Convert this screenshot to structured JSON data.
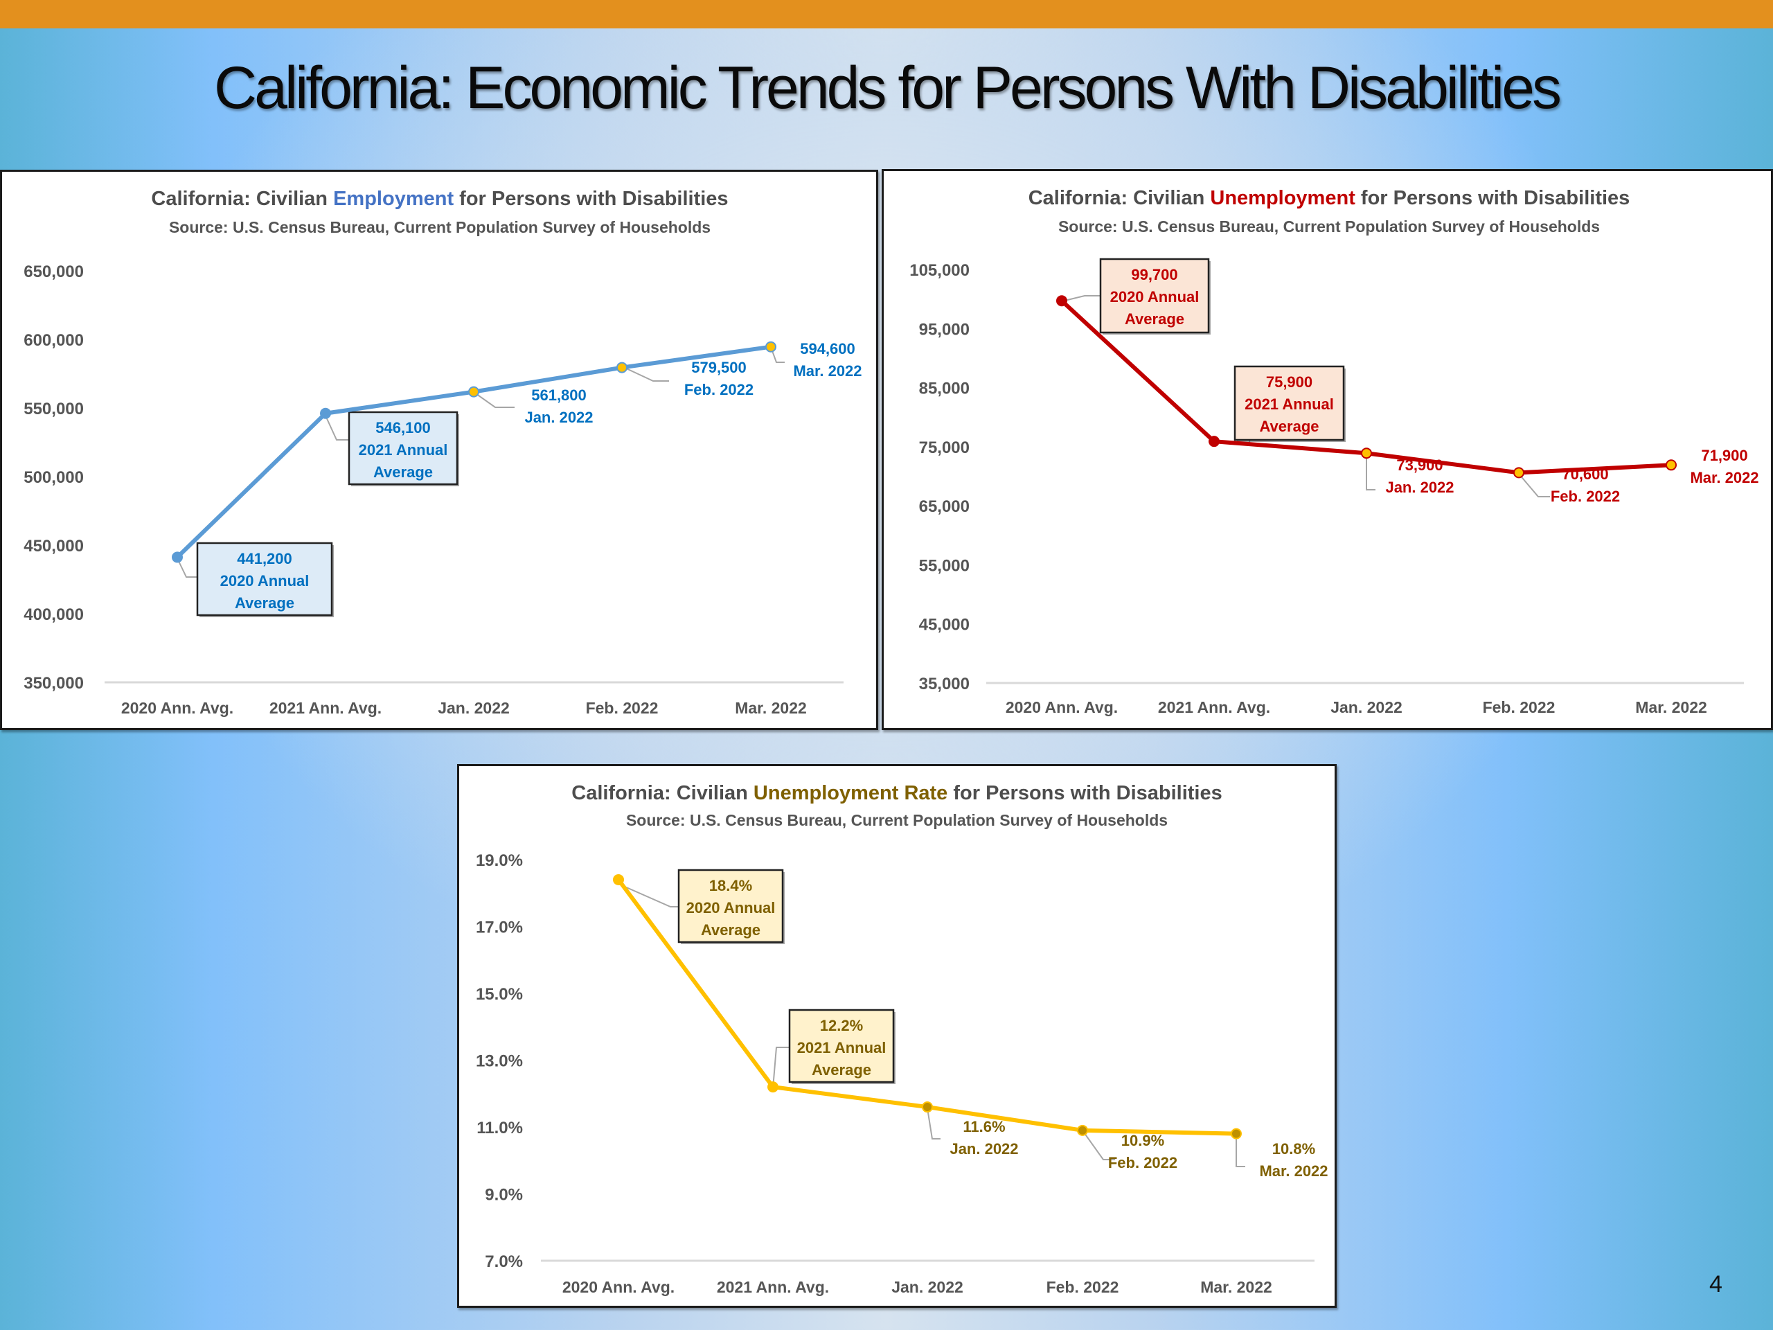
{
  "slide": {
    "title": "California: Economic Trends for Persons With Disabilities",
    "page_number": "4",
    "accent_bar_color": "#E3901E"
  },
  "chart_data": [
    {
      "id": "employment",
      "type": "line",
      "title_parts": [
        "California: Civilian ",
        "Employment",
        " for Persons with Disabilities"
      ],
      "title_highlight_color": "#4472C4",
      "subtitle": "Source: U.S. Census Bureau, Current Population Survey of Households",
      "xlabel": "",
      "ylabel": "",
      "categories": [
        "2020 Ann. Avg.",
        "2021 Ann. Avg.",
        "Jan. 2022",
        "Feb. 2022",
        "Mar. 2022"
      ],
      "values": [
        441200,
        546100,
        561800,
        579500,
        594600
      ],
      "ylim": [
        350000,
        650000
      ],
      "yticks": [
        350000,
        400000,
        450000,
        500000,
        550000,
        600000,
        650000
      ],
      "ytick_labels": [
        "350,000",
        "400,000",
        "450,000",
        "500,000",
        "550,000",
        "600,000",
        "650,000"
      ],
      "line_color": "#5B9BD5",
      "label_color": "#0070C0",
      "label_box_fill": "#DDEBF7",
      "marker_colors": [
        "#5B9BD5",
        "#5B9BD5",
        "#FFC000",
        "#FFC000",
        "#FFC000"
      ],
      "data_labels": [
        [
          "441,200",
          "2020 Annual",
          "Average"
        ],
        [
          "546,100",
          "2021 Annual",
          "Average"
        ],
        [
          "561,800",
          "Jan. 2022"
        ],
        [
          "579,500",
          "Feb. 2022"
        ],
        [
          "594,600",
          "Mar. 2022"
        ]
      ],
      "boxed_labels": [
        true,
        true,
        false,
        false,
        false
      ],
      "grid": false,
      "legend": "none"
    },
    {
      "id": "unemployment",
      "type": "line",
      "title_parts": [
        "California: Civilian ",
        "Unemployment",
        " for Persons with Disabilities"
      ],
      "title_highlight_color": "#C00000",
      "subtitle": "Source: U.S. Census Bureau, Current Population Survey of Households",
      "xlabel": "",
      "ylabel": "",
      "categories": [
        "2020 Ann. Avg.",
        "2021 Ann. Avg.",
        "Jan. 2022",
        "Feb. 2022",
        "Mar. 2022"
      ],
      "values": [
        99700,
        75900,
        73900,
        70600,
        71900
      ],
      "ylim": [
        35000,
        105000
      ],
      "yticks": [
        35000,
        45000,
        55000,
        65000,
        75000,
        85000,
        95000,
        105000
      ],
      "ytick_labels": [
        "35,000",
        "45,000",
        "55,000",
        "65,000",
        "75,000",
        "85,000",
        "95,000",
        "105,000"
      ],
      "line_color": "#C00000",
      "label_color": "#C00000",
      "label_box_fill": "#FBE5D6",
      "marker_colors": [
        "#C00000",
        "#C00000",
        "#FFC000",
        "#FFC000",
        "#FFC000"
      ],
      "data_labels": [
        [
          "99,700",
          "2020 Annual",
          "Average"
        ],
        [
          "75,900",
          "2021 Annual",
          "Average"
        ],
        [
          "73,900",
          "Jan. 2022"
        ],
        [
          "70,600",
          "Feb. 2022"
        ],
        [
          "71,900",
          "Mar. 2022"
        ]
      ],
      "boxed_labels": [
        true,
        true,
        false,
        false,
        false
      ],
      "grid": false,
      "legend": "none"
    },
    {
      "id": "unemployment-rate",
      "type": "line",
      "title_parts": [
        "California: Civilian ",
        "Unemployment Rate",
        " for Persons with Disabilities"
      ],
      "title_highlight_color": "#7F6000",
      "subtitle": "Source: U.S. Census Bureau, Current Population Survey of Households",
      "xlabel": "",
      "ylabel": "",
      "categories": [
        "2020 Ann. Avg.",
        "2021 Ann. Avg.",
        "Jan. 2022",
        "Feb. 2022",
        "Mar. 2022"
      ],
      "values": [
        18.4,
        12.2,
        11.6,
        10.9,
        10.8
      ],
      "ylim": [
        7.0,
        19.0
      ],
      "yticks": [
        7.0,
        9.0,
        11.0,
        13.0,
        15.0,
        17.0,
        19.0
      ],
      "ytick_labels": [
        "7.0%",
        "9.0%",
        "11.0%",
        "13.0%",
        "15.0%",
        "17.0%",
        "19.0%"
      ],
      "line_color": "#FFC000",
      "label_color": "#7F6000",
      "label_box_fill": "#FFF2CC",
      "marker_colors": [
        "#FFC000",
        "#FFC000",
        "#BF9000",
        "#BF9000",
        "#BF9000"
      ],
      "data_labels": [
        [
          "18.4%",
          "2020 Annual",
          "Average"
        ],
        [
          "12.2%",
          "2021 Annual",
          "Average"
        ],
        [
          "11.6%",
          "Jan. 2022"
        ],
        [
          "10.9%",
          "Feb. 2022"
        ],
        [
          "10.8%",
          "Mar. 2022"
        ]
      ],
      "boxed_labels": [
        true,
        true,
        false,
        false,
        false
      ],
      "grid": false,
      "legend": "none"
    }
  ]
}
